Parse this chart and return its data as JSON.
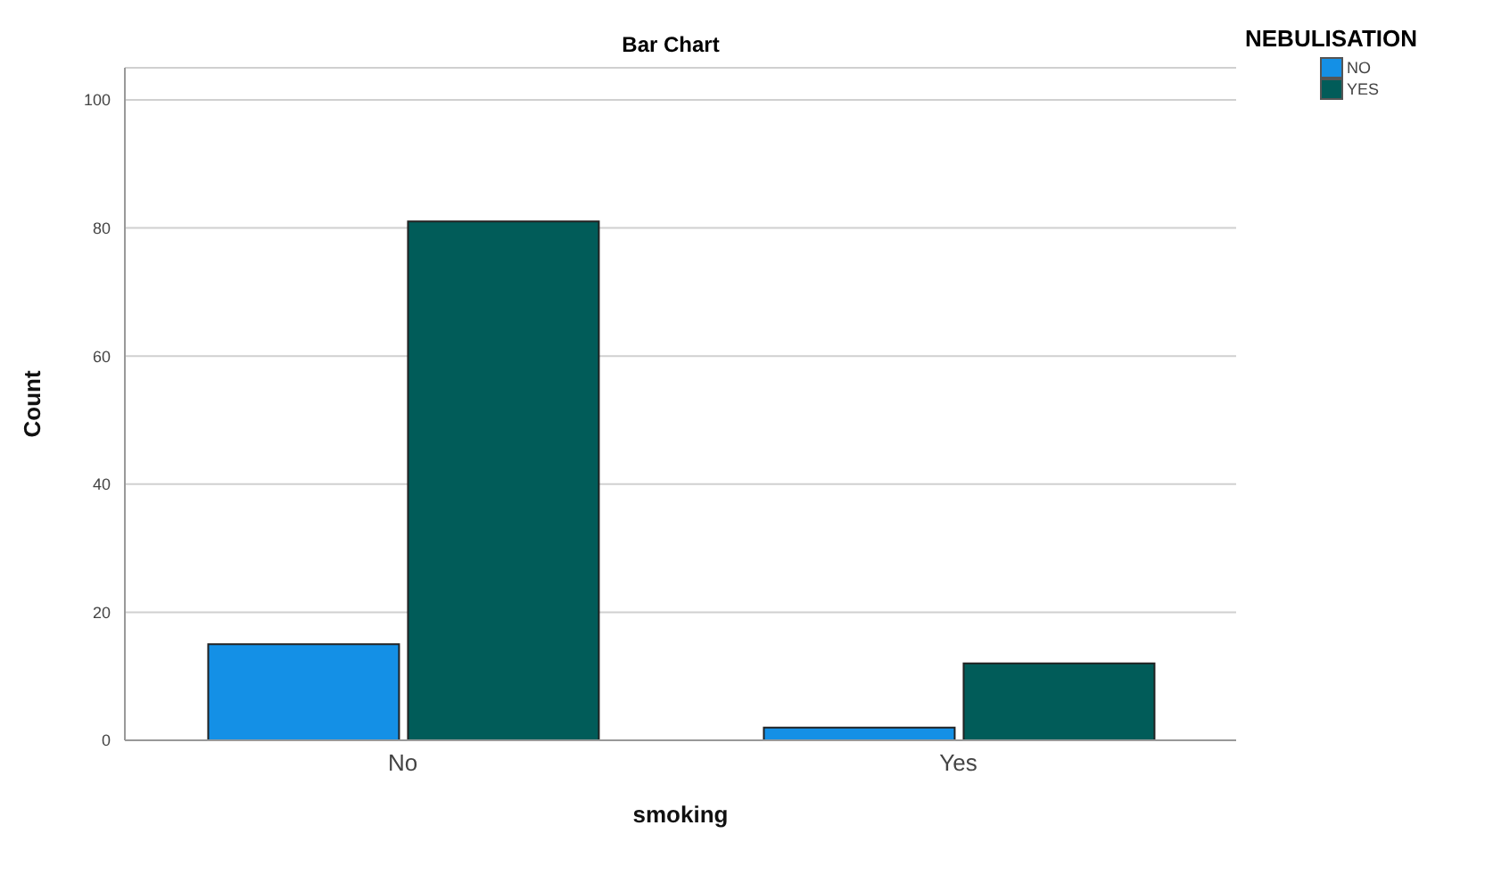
{
  "chart_data": {
    "type": "bar",
    "title": "Bar Chart",
    "xlabel": "smoking",
    "ylabel": "Count",
    "legend_title": "NEBULISATION",
    "categories": [
      "No",
      "Yes"
    ],
    "series": [
      {
        "name": "NO",
        "color": "#1490e6",
        "values": [
          15,
          2
        ]
      },
      {
        "name": "YES",
        "color": "#015c59",
        "values": [
          81,
          12
        ]
      }
    ],
    "ylim": [
      0,
      105
    ],
    "yticks": [
      0,
      20,
      40,
      60,
      80,
      100
    ],
    "grid": "y",
    "legend": "top right"
  }
}
